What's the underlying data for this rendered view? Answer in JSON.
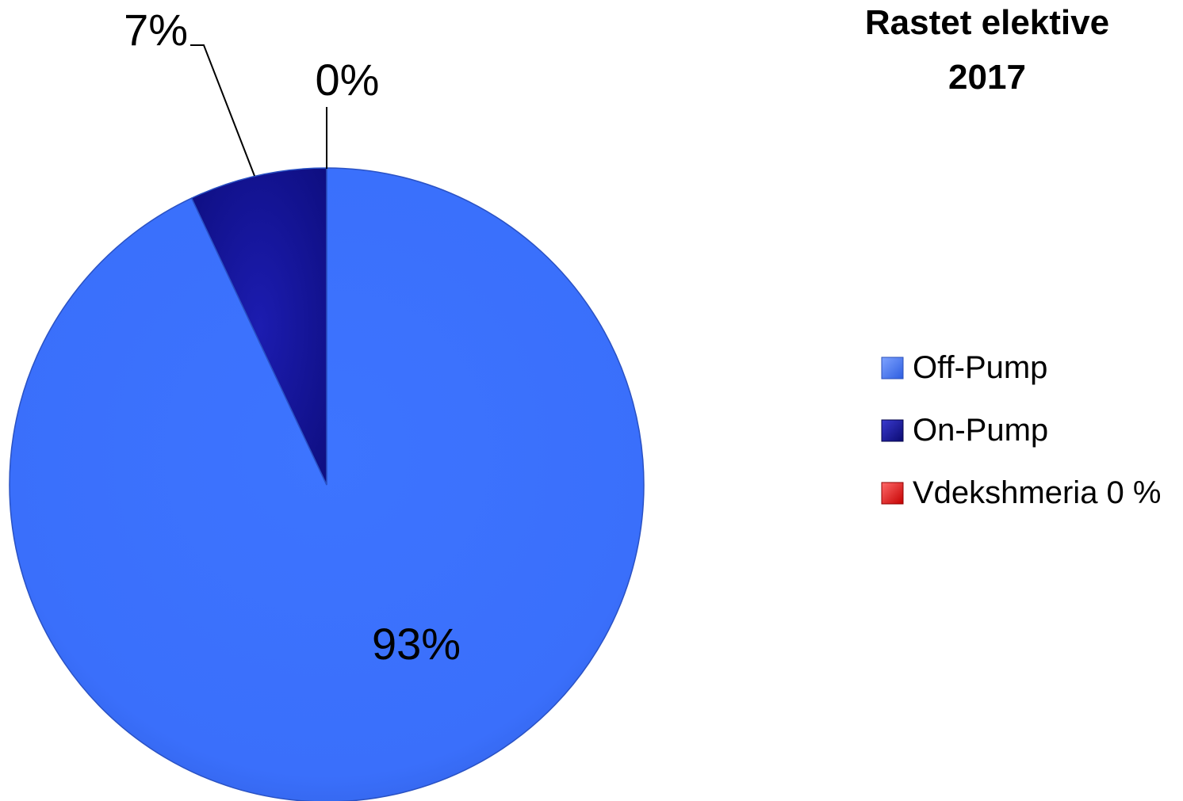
{
  "chart_data": {
    "type": "pie",
    "title": [
      "Rastet elektive",
      "2017"
    ],
    "legend_position": "right",
    "slices": [
      {
        "name": "Off-Pump",
        "value": 93,
        "label": "93%",
        "color": "#3a72ff"
      },
      {
        "name": "On-Pump",
        "value": 7,
        "label": "7%",
        "color": "#1a1aa8"
      },
      {
        "name": "Vdekshmeria 0 %",
        "value": 0,
        "label": "0%",
        "color": "#ee1111"
      }
    ]
  }
}
